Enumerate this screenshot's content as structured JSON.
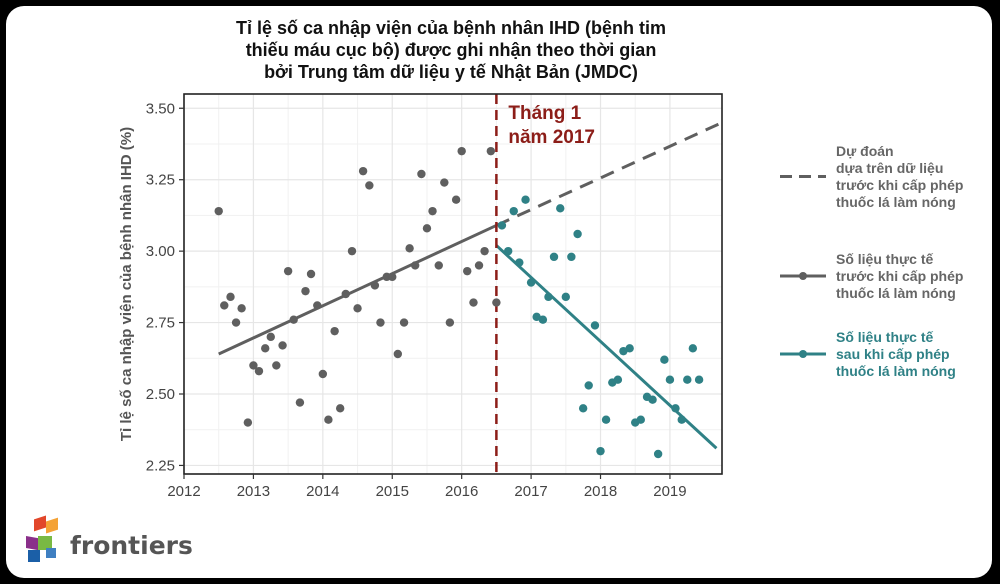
{
  "chart_data": {
    "type": "scatter",
    "title_lines": [
      "Tỉ lệ số ca nhập viện của bệnh nhân IHD (bệnh tim",
      "thiếu máu cục bộ) được ghi nhận theo thời gian",
      "bởi Trung tâm dữ liệu y tế Nhật Bản (JMDC)"
    ],
    "ylabel": "Tỉ lệ số ca nhập viện của bệnh nhân IHD (%)",
    "xlabel": "",
    "xlim": [
      2012,
      2019.75
    ],
    "ylim": [
      2.22,
      3.55
    ],
    "x_ticks": [
      2012,
      2013,
      2014,
      2015,
      2016,
      2017,
      2018,
      2019
    ],
    "y_ticks": [
      2.25,
      2.5,
      2.75,
      3.0,
      3.25,
      3.5
    ],
    "y_tick_labels": [
      "2.25",
      "2.50",
      "2.75",
      "3.00",
      "3.25",
      "3.50"
    ],
    "grid": true,
    "legend_position": "right",
    "annotation": {
      "x": 2016.5,
      "lines": [
        "Tháng 1",
        "năm 2017"
      ],
      "color": "#8c1d18"
    },
    "series": [
      {
        "name": "Số liệu thực tế khi cấp phép thuốc lá làm nóng",
        "legend_lines": [
          "Số liệu thực tế",
          "trước khi cấp phép",
          "thuốc lá làm nóng"
        ],
        "color": "#5f5f5f",
        "points": [
          [
            2012.5,
            3.14
          ],
          [
            2012.58,
            2.81
          ],
          [
            2012.67,
            2.84
          ],
          [
            2012.75,
            2.75
          ],
          [
            2012.83,
            2.8
          ],
          [
            2012.92,
            2.4
          ],
          [
            2013.0,
            2.6
          ],
          [
            2013.08,
            2.58
          ],
          [
            2013.17,
            2.66
          ],
          [
            2013.25,
            2.7
          ],
          [
            2013.33,
            2.6
          ],
          [
            2013.42,
            2.67
          ],
          [
            2013.5,
            2.93
          ],
          [
            2013.58,
            2.76
          ],
          [
            2013.67,
            2.47
          ],
          [
            2013.75,
            2.86
          ],
          [
            2013.83,
            2.92
          ],
          [
            2013.92,
            2.81
          ],
          [
            2014.0,
            2.57
          ],
          [
            2014.08,
            2.41
          ],
          [
            2014.17,
            2.72
          ],
          [
            2014.25,
            2.45
          ],
          [
            2014.33,
            2.85
          ],
          [
            2014.42,
            3.0
          ],
          [
            2014.5,
            2.8
          ],
          [
            2014.58,
            3.28
          ],
          [
            2014.67,
            3.23
          ],
          [
            2014.75,
            2.88
          ],
          [
            2014.83,
            2.75
          ],
          [
            2014.92,
            2.91
          ],
          [
            2015.0,
            2.91
          ],
          [
            2015.08,
            2.64
          ],
          [
            2015.17,
            2.75
          ],
          [
            2015.25,
            3.01
          ],
          [
            2015.33,
            2.95
          ],
          [
            2015.42,
            3.27
          ],
          [
            2015.5,
            3.08
          ],
          [
            2015.58,
            3.14
          ],
          [
            2015.67,
            2.95
          ],
          [
            2015.75,
            3.24
          ],
          [
            2015.83,
            2.75
          ],
          [
            2015.92,
            3.18
          ],
          [
            2016.0,
            3.35
          ],
          [
            2016.08,
            2.93
          ],
          [
            2016.17,
            2.82
          ],
          [
            2016.25,
            2.95
          ],
          [
            2016.33,
            3.0
          ],
          [
            2016.42,
            3.35
          ],
          [
            2016.5,
            2.82
          ]
        ],
        "fit": [
          [
            2012.5,
            2.64
          ],
          [
            2016.5,
            3.09
          ]
        ]
      },
      {
        "name": "Số liệu thực tế sau khi cấp phép thuốc lá làm nóng",
        "legend_lines": [
          "Số liệu thực tế",
          "sau khi cấp phép",
          "thuốc lá làm nóng"
        ],
        "color": "#2f8186",
        "points": [
          [
            2016.58,
            3.09
          ],
          [
            2016.67,
            3.0
          ],
          [
            2016.75,
            3.14
          ],
          [
            2016.83,
            2.96
          ],
          [
            2016.92,
            3.18
          ],
          [
            2017.0,
            2.89
          ],
          [
            2017.08,
            2.77
          ],
          [
            2017.17,
            2.76
          ],
          [
            2017.25,
            2.84
          ],
          [
            2017.33,
            2.98
          ],
          [
            2017.42,
            3.15
          ],
          [
            2017.5,
            2.84
          ],
          [
            2017.58,
            2.98
          ],
          [
            2017.67,
            3.06
          ],
          [
            2017.75,
            2.45
          ],
          [
            2017.83,
            2.53
          ],
          [
            2017.92,
            2.74
          ],
          [
            2018.0,
            2.3
          ],
          [
            2018.08,
            2.41
          ],
          [
            2018.17,
            2.54
          ],
          [
            2018.25,
            2.55
          ],
          [
            2018.33,
            2.65
          ],
          [
            2018.42,
            2.66
          ],
          [
            2018.5,
            2.4
          ],
          [
            2018.58,
            2.41
          ],
          [
            2018.67,
            2.49
          ],
          [
            2018.75,
            2.48
          ],
          [
            2018.83,
            2.29
          ],
          [
            2018.92,
            2.62
          ],
          [
            2019.0,
            2.55
          ],
          [
            2019.08,
            2.45
          ],
          [
            2019.17,
            2.41
          ],
          [
            2019.25,
            2.55
          ],
          [
            2019.33,
            2.66
          ],
          [
            2019.42,
            2.55
          ]
        ],
        "fit": [
          [
            2016.5,
            3.02
          ],
          [
            2019.67,
            2.31
          ]
        ]
      },
      {
        "name": "Dự đoán dựa trên dữ liệu trước khi cấp phép thuốc lá làm nóng",
        "legend_lines": [
          "Dự đoán",
          "dựa trên dữ liệu",
          "trước khi cấp phép",
          "thuốc lá làm nóng"
        ],
        "color": "#5f5f5f",
        "style": "dashed",
        "fit": [
          [
            2016.5,
            3.09
          ],
          [
            2019.75,
            3.45
          ]
        ]
      }
    ]
  },
  "branding": {
    "logo_text": "frontiers",
    "logo_colors": [
      "#e2472b",
      "#f4a235",
      "#3f7fc1",
      "#79b943",
      "#8a2f8a",
      "#1b5fa7"
    ]
  },
  "colors": {
    "background": "#ffffff",
    "panel_border": "#222222",
    "grid": "#e6e6e6",
    "frame": "#000000"
  }
}
